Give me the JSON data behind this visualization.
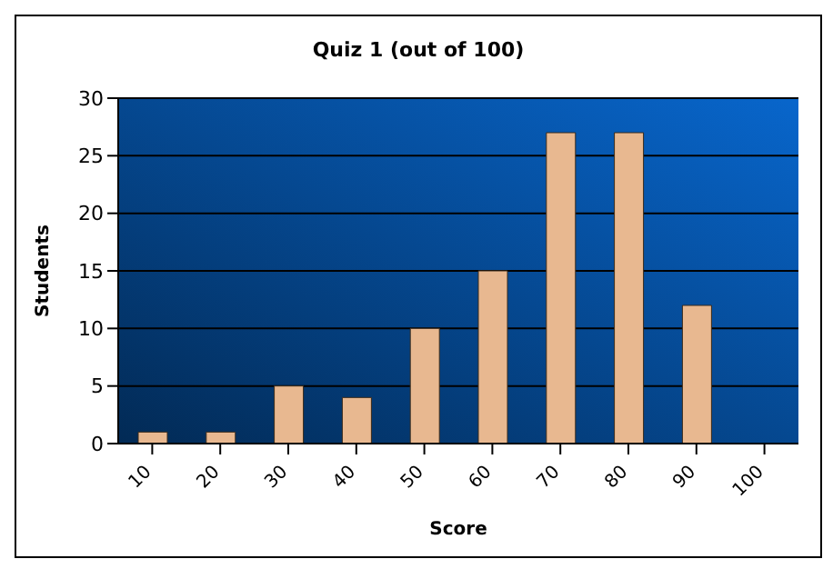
{
  "chart_data": {
    "type": "bar",
    "title": "Quiz 1 (out of 100)",
    "xlabel": "Score",
    "ylabel": "Students",
    "categories": [
      "10",
      "20",
      "30",
      "40",
      "50",
      "60",
      "70",
      "80",
      "90",
      "100"
    ],
    "values": [
      1,
      1,
      5,
      4,
      10,
      15,
      27,
      27,
      12,
      0
    ],
    "color": "#e8b890",
    "ylim": [
      0,
      30
    ],
    "yticks": [
      0,
      5,
      10,
      15,
      20,
      25,
      30
    ],
    "grid": "y"
  }
}
